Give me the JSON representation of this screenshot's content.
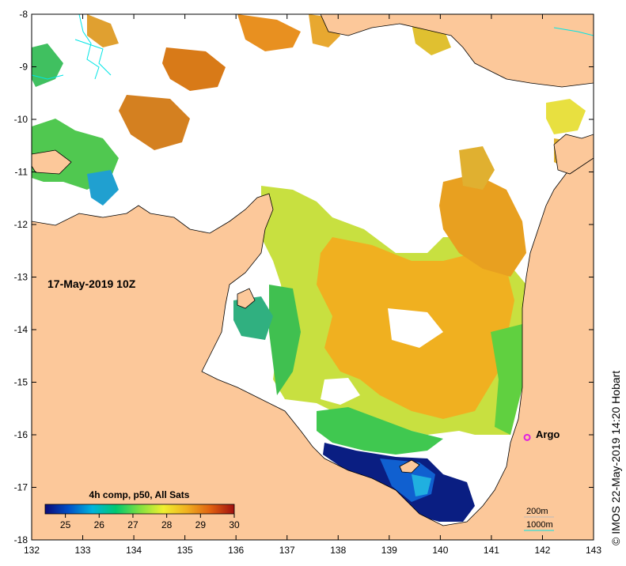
{
  "map": {
    "date_label": "17-May-2019 10Z",
    "credit": "© IMOS 22-May-2019 14:20 Hobart",
    "lon_ticks": [
      "132",
      "133",
      "134",
      "135",
      "136",
      "137",
      "138",
      "139",
      "140",
      "141",
      "142",
      "143"
    ],
    "lat_ticks": [
      "-8",
      "-9",
      "-10",
      "-11",
      "-12",
      "-13",
      "-14",
      "-15",
      "-16",
      "-17",
      "-18"
    ],
    "marker": {
      "label": "Argo",
      "lon": 141.7,
      "lat": -16.05,
      "color": "#e020e0"
    },
    "depth_legend": {
      "contour_200": "200m",
      "contour_1000": "1000m"
    },
    "colors": {
      "land": "#fcc89a",
      "no_data": "#ffffff",
      "contour": "#00e5e5"
    }
  },
  "colorbar": {
    "title": "4h comp, p50, All Sats",
    "ticks": [
      "25",
      "26",
      "27",
      "28",
      "29",
      "30"
    ],
    "stops": [
      "#0a0a78",
      "#0050c8",
      "#00b4dc",
      "#00c870",
      "#80e040",
      "#f0f030",
      "#f0b020",
      "#e06010",
      "#a01010"
    ]
  }
}
